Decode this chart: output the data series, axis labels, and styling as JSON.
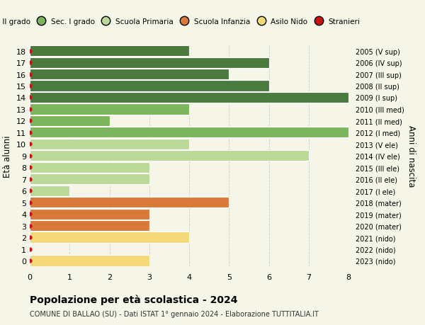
{
  "ages": [
    18,
    17,
    16,
    15,
    14,
    13,
    12,
    11,
    10,
    9,
    8,
    7,
    6,
    5,
    4,
    3,
    2,
    1,
    0
  ],
  "right_labels": [
    "2005 (V sup)",
    "2006 (IV sup)",
    "2007 (III sup)",
    "2008 (II sup)",
    "2009 (I sup)",
    "2010 (III med)",
    "2011 (II med)",
    "2012 (I med)",
    "2013 (V ele)",
    "2014 (IV ele)",
    "2015 (III ele)",
    "2016 (II ele)",
    "2017 (I ele)",
    "2018 (mater)",
    "2019 (mater)",
    "2020 (mater)",
    "2021 (nido)",
    "2022 (nido)",
    "2023 (nido)"
  ],
  "bar_values": [
    4,
    6,
    5,
    6,
    8,
    4,
    2,
    8,
    4,
    7,
    3,
    3,
    1,
    5,
    3,
    3,
    4,
    0,
    3
  ],
  "bar_colors": [
    "#4a7a3d",
    "#4a7a3d",
    "#4a7a3d",
    "#4a7a3d",
    "#4a7a3d",
    "#7db55e",
    "#7db55e",
    "#7db55e",
    "#bcd99a",
    "#bcd99a",
    "#bcd99a",
    "#bcd99a",
    "#bcd99a",
    "#d9793a",
    "#d9793a",
    "#d9793a",
    "#f5d878",
    "#f5d878",
    "#f5d878"
  ],
  "legend_labels": [
    "Sec. II grado",
    "Sec. I grado",
    "Scuola Primaria",
    "Scuola Infanzia",
    "Asilo Nido",
    "Stranieri"
  ],
  "legend_colors": [
    "#4a7a3d",
    "#7db55e",
    "#bcd99a",
    "#d9793a",
    "#f5d878",
    "#cc1111"
  ],
  "ylabel": "Età alunni",
  "right_ylabel": "Anni di nascita",
  "title": "Popolazione per età scolastica - 2024",
  "subtitle": "COMUNE DI BALLAO (SU) - Dati ISTAT 1° gennaio 2024 - Elaborazione TUTTITALIA.IT",
  "xlim": [
    0,
    8
  ],
  "background_color": "#f5f5e8",
  "bar_height": 0.92,
  "grid_color": "#cccccc",
  "dot_color": "#cc1111"
}
